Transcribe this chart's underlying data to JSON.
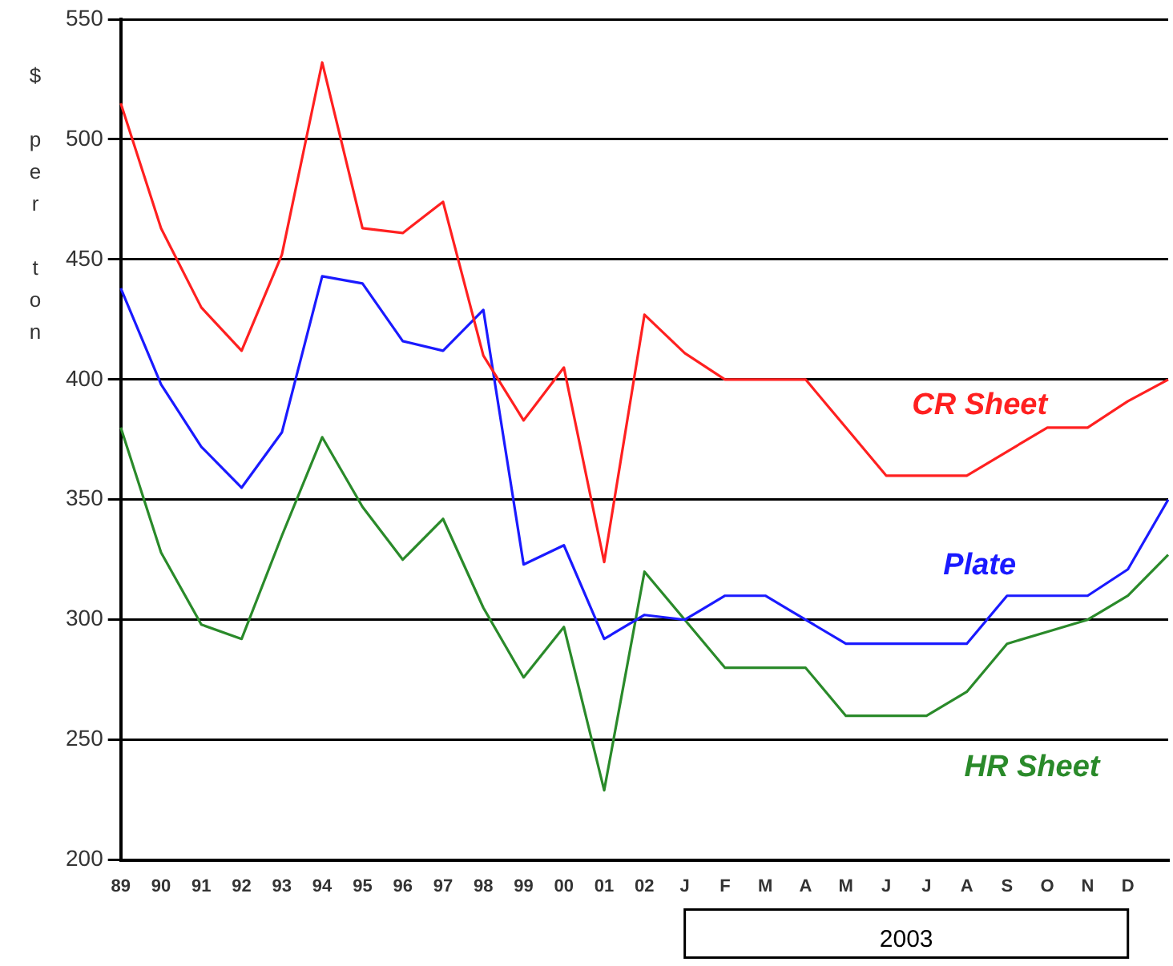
{
  "chart_data": {
    "type": "line",
    "ylabel": "$ per ton",
    "categories": [
      "89",
      "90",
      "91",
      "92",
      "93",
      "94",
      "95",
      "96",
      "97",
      "98",
      "99",
      "00",
      "01",
      "02",
      "J",
      "F",
      "M",
      "A",
      "M",
      "J",
      "J",
      "A",
      "S",
      "O",
      "N",
      "D",
      null
    ],
    "series": [
      {
        "name": "CR Sheet",
        "color": "#ff2020",
        "values": [
          515,
          463,
          430,
          412,
          452,
          532,
          463,
          461,
          474,
          410,
          383,
          405,
          324,
          427,
          411,
          400,
          400,
          400,
          380,
          360,
          360,
          360,
          370,
          380,
          380,
          391,
          400
        ]
      },
      {
        "name": "Plate",
        "color": "#1a1aff",
        "values": [
          438,
          398,
          372,
          355,
          378,
          443,
          440,
          416,
          412,
          429,
          323,
          331,
          292,
          302,
          300,
          310,
          310,
          300,
          290,
          290,
          290,
          290,
          310,
          310,
          310,
          321,
          350
        ]
      },
      {
        "name": "HR Sheet",
        "color": "#2a8a2a",
        "values": [
          380,
          328,
          298,
          292,
          335,
          376,
          347,
          325,
          342,
          305,
          276,
          297,
          229,
          320,
          300,
          280,
          280,
          280,
          260,
          260,
          260,
          270,
          290,
          295,
          300,
          310,
          327
        ]
      }
    ],
    "ylim": [
      200,
      550
    ],
    "yticks": [
      200,
      250,
      300,
      350,
      400,
      450,
      500,
      550
    ],
    "grid": "y",
    "legend": false,
    "marker": "none",
    "line_style": "solid",
    "annotations": [
      "2003"
    ]
  }
}
